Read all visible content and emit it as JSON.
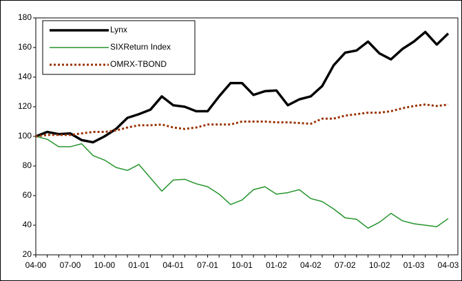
{
  "chart_data": {
    "type": "line",
    "categories": [
      "04-00",
      null,
      null,
      "07-00",
      null,
      null,
      "10-00",
      null,
      null,
      "01-01",
      null,
      null,
      "04-01",
      null,
      null,
      "07-01",
      null,
      null,
      "10-01",
      null,
      null,
      "01-02",
      null,
      null,
      "04-02",
      null,
      null,
      "07-02",
      null,
      null,
      "10-02",
      null,
      null,
      "01-03",
      null,
      null,
      "04-03"
    ],
    "series": [
      {
        "name": "Lynx",
        "color": "#000000",
        "dash": "solid",
        "width": 3.5,
        "values": [
          100,
          103,
          101.5,
          102,
          97.5,
          96,
          100,
          105,
          112.5,
          115,
          118,
          127,
          121,
          120,
          117,
          117,
          127,
          136,
          136,
          128,
          130.5,
          131,
          121,
          125,
          127,
          134,
          148,
          156.5,
          158,
          164,
          156,
          152,
          159,
          164,
          170.5,
          162,
          169.5
        ]
      },
      {
        "name": "SIXReturn Index",
        "color": "#23942a",
        "dash": "solid",
        "width": 1.5,
        "values": [
          100,
          98,
          93,
          93,
          95,
          87,
          84,
          79,
          77,
          81,
          72,
          63,
          70.5,
          71,
          68,
          66,
          61,
          54,
          57,
          64,
          66,
          61,
          62,
          64,
          58,
          56,
          51,
          45,
          44,
          38,
          42,
          48,
          43,
          41,
          40,
          39,
          44.5
        ]
      },
      {
        "name": "OMRX-TBOND",
        "color": "#993300",
        "dash": "dotted",
        "width": 3,
        "values": [
          100,
          101,
          101,
          101,
          102,
          103,
          103,
          104,
          106,
          107.5,
          107.5,
          108,
          106,
          105,
          106,
          108,
          108,
          108,
          110,
          110,
          110,
          109.5,
          109.5,
          109,
          108.5,
          112,
          112,
          114,
          115,
          116,
          116,
          117,
          119,
          120.5,
          121.5,
          120.5,
          121.5
        ]
      }
    ],
    "ylim": [
      20,
      180
    ],
    "yticks": [
      20,
      40,
      60,
      80,
      100,
      120,
      140,
      160,
      180
    ],
    "grid": false,
    "legend": "upper left"
  }
}
